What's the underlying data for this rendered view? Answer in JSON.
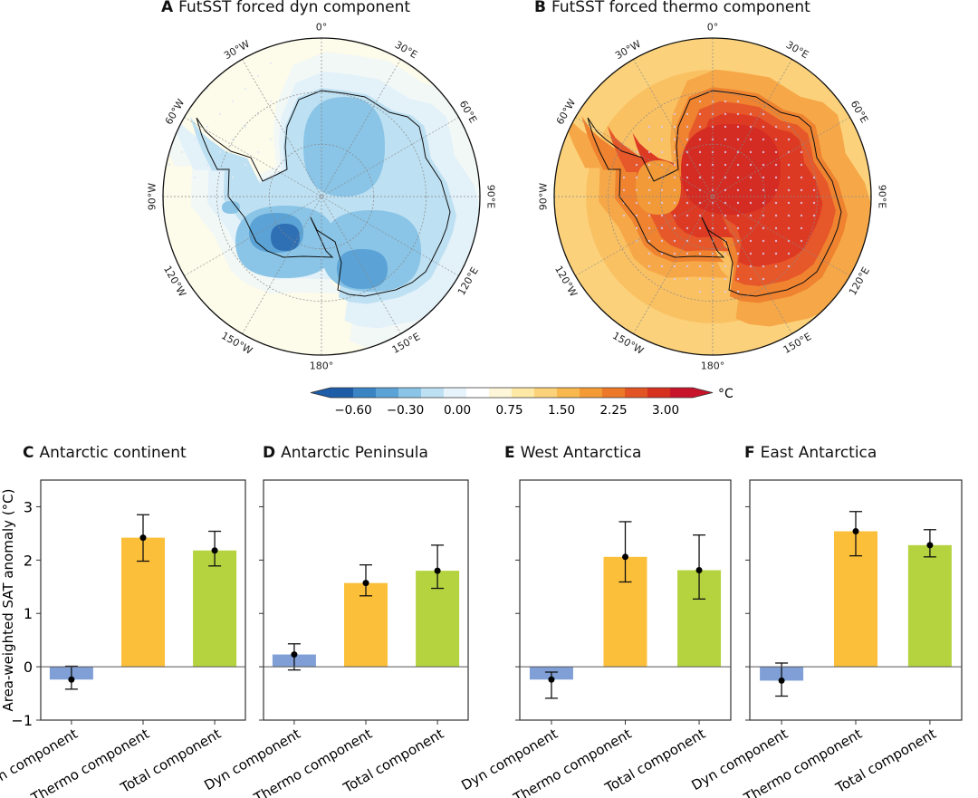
{
  "maps": [
    {
      "letter": "A",
      "title": "FutSST forced dyn component",
      "scheme": "dyn"
    },
    {
      "letter": "B",
      "title": "FutSST forced thermo component",
      "scheme": "thermo"
    }
  ],
  "longitude_labels": [
    "0°",
    "30°E",
    "60°E",
    "90°E",
    "120°E",
    "150°E",
    "180°",
    "150°W",
    "120°W",
    "90°W",
    "60°W",
    "30°W"
  ],
  "colorbar": {
    "unit": "°C",
    "ticks": [
      "−0.60",
      "−0.30",
      "0.00",
      "0.75",
      "1.50",
      "2.25",
      "3.00"
    ],
    "colors": [
      "#1d5ca6",
      "#3a84c4",
      "#5ba3d6",
      "#8ac4e6",
      "#bde0f2",
      "#e6f3fa",
      "#ffffff",
      "#fdf6d8",
      "#fde8a6",
      "#fbd279",
      "#f8b84e",
      "#f39a35",
      "#ec7828",
      "#e25423",
      "#d6301f",
      "#c8142a"
    ]
  },
  "colors": {
    "dyn": "#7f9fd6",
    "thermo": "#fcbf3a",
    "total": "#b5d33f",
    "errorbar": "#111111"
  },
  "chart_data": [
    {
      "type": "bar",
      "letter": "C",
      "title": "Antarctic continent",
      "ylabel": "Area-weighted SAT anomaly (°C)",
      "ylim": [
        -1,
        3.5
      ],
      "yticks": [
        -1,
        0,
        1,
        2,
        3
      ],
      "categories": [
        "Dyn component",
        "Thermo component",
        "Total component"
      ],
      "values": [
        -0.24,
        2.42,
        2.18
      ],
      "err_low": [
        -0.42,
        1.98,
        1.89
      ],
      "err_high": [
        0.01,
        2.85,
        2.54
      ]
    },
    {
      "type": "bar",
      "letter": "D",
      "title": "Antarctic Peninsula",
      "ylabel": "",
      "ylim": [
        -1,
        3.5
      ],
      "yticks": [
        -1,
        0,
        1,
        2,
        3
      ],
      "categories": [
        "Dyn component",
        "Thermo component",
        "Total component"
      ],
      "values": [
        0.23,
        1.57,
        1.8
      ],
      "err_low": [
        -0.06,
        1.33,
        1.47
      ],
      "err_high": [
        0.43,
        1.91,
        2.28
      ]
    },
    {
      "type": "bar",
      "letter": "E",
      "title": "West Antarctica",
      "ylabel": "",
      "ylim": [
        -1,
        3.5
      ],
      "yticks": [
        -1,
        0,
        1,
        2,
        3
      ],
      "categories": [
        "Dyn component",
        "Thermo component",
        "Total component"
      ],
      "values": [
        -0.24,
        2.06,
        1.81
      ],
      "err_low": [
        -0.59,
        1.59,
        1.27
      ],
      "err_high": [
        -0.1,
        2.72,
        2.47
      ]
    },
    {
      "type": "bar",
      "letter": "F",
      "title": "East Antarctica",
      "ylabel": "",
      "ylim": [
        -1,
        3.5
      ],
      "yticks": [
        -1,
        0,
        1,
        2,
        3
      ],
      "categories": [
        "Dyn component",
        "Thermo component",
        "Total component"
      ],
      "values": [
        -0.26,
        2.54,
        2.28
      ],
      "err_low": [
        -0.55,
        2.08,
        2.06
      ],
      "err_high": [
        0.07,
        2.91,
        2.57
      ]
    }
  ]
}
